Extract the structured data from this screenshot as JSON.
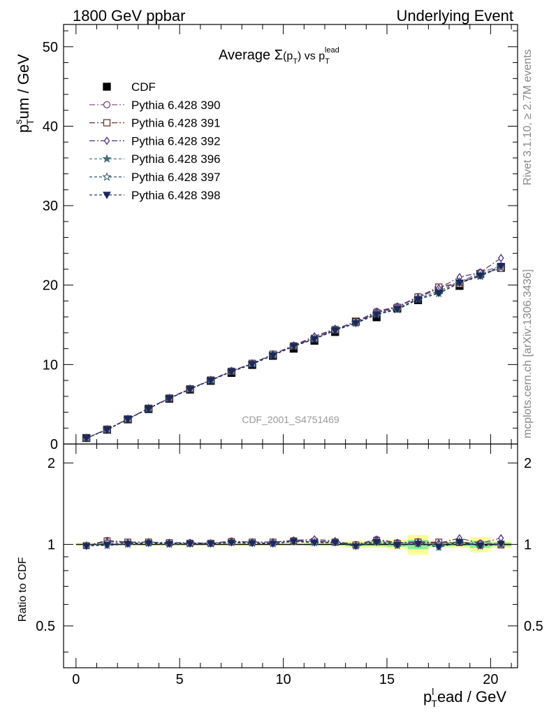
{
  "header": {
    "left": "1800 GeV ppbar",
    "right": "Underlying Event"
  },
  "side_labels": {
    "rivet": "Rivet 3.1.10, ≥ 2.7M events",
    "mcplots": "mcplots.cern.ch [arXiv:1306.3436]"
  },
  "watermark": "CDF_2001_S4751469",
  "chart_data": [
    {
      "type": "scatter",
      "title": "Average Σ(p_T) vs p_T^lead",
      "title_parts": {
        "lead": "Average ",
        "sigma": "Σ",
        "open": "(p",
        "sub": "T",
        "close": ")",
        "vs": " vs p",
        "sub2": "T",
        "sup": "lead"
      },
      "ylabel_parts": {
        "p": "p",
        "sup": "s",
        "sub": "T",
        "rest": "um / GeV"
      },
      "xlim": [
        -0.6,
        21.3
      ],
      "ylim": [
        0,
        52.8
      ],
      "yticks": [
        0,
        10,
        20,
        30,
        40,
        50
      ],
      "legend": {
        "placement": "top-left"
      },
      "x": [
        0.5,
        1.5,
        2.5,
        3.5,
        4.5,
        5.5,
        6.5,
        7.5,
        8.5,
        9.5,
        10.5,
        11.5,
        12.5,
        13.5,
        14.5,
        15.5,
        16.5,
        17.5,
        18.5,
        19.5,
        20.5
      ],
      "series": [
        {
          "name": "CDF",
          "color": "#000000",
          "marker": "square-filled",
          "dash": "none",
          "values": [
            0.75,
            1.8,
            3.1,
            4.4,
            5.7,
            6.85,
            7.95,
            8.95,
            9.95,
            11.1,
            12.0,
            13.0,
            14.1,
            15.4,
            15.95,
            17.05,
            18.1,
            19.4,
            19.9,
            21.4,
            22.2
          ]
        },
        {
          "name": "Pythia 6.428 390",
          "color": "#7a4a7a",
          "marker": "circle-open",
          "dash": "8,3,2,3",
          "values": [
            0.74,
            1.86,
            3.15,
            4.5,
            5.78,
            6.95,
            8.05,
            9.2,
            10.15,
            11.3,
            12.4,
            13.35,
            14.45,
            15.4,
            16.7,
            17.3,
            18.55,
            19.7,
            20.35,
            21.6,
            22.4
          ]
        },
        {
          "name": "Pythia 6.428 391",
          "color": "#6a3535",
          "marker": "square-open",
          "dash": "8,3,2,3",
          "values": [
            0.74,
            1.86,
            3.15,
            4.5,
            5.78,
            6.95,
            8.05,
            9.15,
            10.15,
            11.3,
            12.35,
            13.3,
            14.4,
            15.35,
            16.5,
            17.2,
            18.5,
            19.75,
            20.15,
            21.4,
            22.1
          ]
        },
        {
          "name": "Pythia 6.428 392",
          "color": "#4b2d7f",
          "marker": "diamond-open",
          "dash": "8,3,2,3",
          "values": [
            0.74,
            1.85,
            3.15,
            4.5,
            5.78,
            6.95,
            8.05,
            9.2,
            10.15,
            11.3,
            12.4,
            13.55,
            14.5,
            15.3,
            16.6,
            17.3,
            18.4,
            19.6,
            21.0,
            21.6,
            23.4
          ]
        },
        {
          "name": "Pythia 6.428 396",
          "color": "#3f6f7f",
          "marker": "star-filled",
          "dash": "4,3",
          "values": [
            0.74,
            1.78,
            3.12,
            4.45,
            5.72,
            6.9,
            8.0,
            9.1,
            10.05,
            11.15,
            12.3,
            13.2,
            14.3,
            15.2,
            16.3,
            16.9,
            18.2,
            18.95,
            20.25,
            21.1,
            22.25
          ]
        },
        {
          "name": "Pythia 6.428 397",
          "color": "#2f5570",
          "marker": "star-open",
          "dash": "4,3",
          "values": [
            0.74,
            1.82,
            3.14,
            4.48,
            5.75,
            6.92,
            8.02,
            9.15,
            10.1,
            11.2,
            12.35,
            13.25,
            14.35,
            15.25,
            16.4,
            17.05,
            18.3,
            19.25,
            20.4,
            21.2,
            22.2
          ]
        },
        {
          "name": "Pythia 6.428 398",
          "color": "#1a2a5a",
          "marker": "triangle-down-filled",
          "dash": "4,3",
          "values": [
            0.74,
            1.8,
            3.12,
            4.45,
            5.72,
            6.9,
            8.0,
            9.1,
            10.05,
            11.15,
            12.3,
            13.2,
            14.3,
            15.2,
            16.3,
            17.0,
            18.2,
            19.0,
            20.3,
            21.2,
            22.4
          ]
        }
      ]
    },
    {
      "type": "scatter",
      "ylabel": "Ratio to CDF",
      "xlabel_parts": {
        "p": "p",
        "sup": "l",
        "sub": "T",
        "rest": "ead / GeV"
      },
      "xlim": [
        -0.6,
        21.3
      ],
      "ylim": [
        0.35,
        2.35
      ],
      "yticks": [
        0.5,
        1,
        2
      ],
      "xticks": [
        0,
        5,
        10,
        15,
        20
      ],
      "reference": 1.0,
      "band_yellow_halfwidth": [
        0.012,
        0.012,
        0.012,
        0.012,
        0.012,
        0.012,
        0.012,
        0.012,
        0.012,
        0.012,
        0.012,
        0.015,
        0.015,
        0.03,
        0.03,
        0.04,
        0.085,
        0.03,
        0.03,
        0.065,
        0.03
      ],
      "band_green_halfwidth": [
        0.005,
        0.005,
        0.005,
        0.005,
        0.005,
        0.005,
        0.005,
        0.005,
        0.005,
        0.005,
        0.005,
        0.007,
        0.007,
        0.015,
        0.015,
        0.02,
        0.04,
        0.015,
        0.015,
        0.03,
        0.015
      ],
      "series_ratios": [
        [
          1.0,
          1.0,
          1.0,
          1.0,
          1.0,
          1.0,
          1.0,
          1.0,
          1.0,
          1.0,
          1.0,
          1.0,
          1.0,
          1.0,
          1.0,
          1.0,
          1.0,
          1.0,
          1.0,
          1.0,
          1.0
        ],
        [
          0.99,
          1.035,
          1.02,
          1.02,
          1.015,
          1.015,
          1.01,
          1.03,
          1.02,
          1.02,
          1.035,
          1.03,
          1.025,
          1.0,
          1.045,
          1.015,
          1.025,
          1.015,
          1.02,
          1.01,
          1.01
        ],
        [
          0.99,
          1.03,
          1.02,
          1.02,
          1.015,
          1.01,
          1.01,
          1.025,
          1.02,
          1.02,
          1.03,
          1.025,
          1.02,
          0.995,
          1.035,
          1.01,
          1.02,
          1.02,
          1.015,
          1.0,
          0.995
        ],
        [
          0.99,
          1.025,
          1.015,
          1.02,
          1.015,
          1.015,
          1.01,
          1.025,
          1.02,
          1.02,
          1.035,
          1.045,
          1.03,
          0.99,
          1.04,
          1.015,
          1.015,
          1.01,
          1.055,
          1.01,
          1.055
        ],
        [
          0.99,
          0.99,
          1.0,
          1.01,
          1.0,
          1.005,
          1.005,
          1.015,
          1.01,
          1.005,
          1.025,
          1.015,
          1.015,
          0.985,
          1.02,
          0.99,
          1.005,
          0.975,
          1.015,
          0.985,
          1.0
        ],
        [
          0.99,
          1.01,
          1.01,
          1.015,
          1.01,
          1.01,
          1.01,
          1.02,
          1.015,
          1.01,
          1.03,
          1.02,
          1.02,
          0.99,
          1.03,
          1.0,
          1.01,
          0.995,
          1.025,
          0.99,
          1.0
        ],
        [
          0.985,
          0.995,
          1.005,
          1.01,
          1.005,
          1.005,
          1.005,
          1.015,
          1.01,
          1.005,
          1.025,
          1.015,
          1.015,
          0.985,
          1.02,
          0.995,
          1.005,
          0.98,
          1.02,
          0.99,
          1.005
        ]
      ]
    }
  ]
}
